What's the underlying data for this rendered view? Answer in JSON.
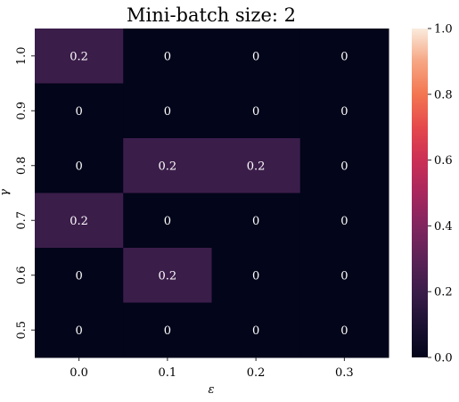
{
  "chart_data": {
    "type": "heatmap",
    "title": "Mini-batch size: 2",
    "xlabel": "ε",
    "ylabel": "γ",
    "x_ticks": [
      "0.0",
      "0.1",
      "0.2",
      "0.3"
    ],
    "y_ticks": [
      "1.0",
      "0.9",
      "0.8",
      "0.7",
      "0.6",
      "0.5"
    ],
    "values": [
      [
        0.2,
        0,
        0,
        0
      ],
      [
        0,
        0,
        0,
        0
      ],
      [
        0,
        0.2,
        0.2,
        0
      ],
      [
        0.2,
        0,
        0,
        0
      ],
      [
        0,
        0.2,
        0,
        0
      ],
      [
        0,
        0,
        0,
        0
      ]
    ],
    "cell_labels": [
      [
        "0.2",
        "0",
        "0",
        "0"
      ],
      [
        "0",
        "0",
        "0",
        "0"
      ],
      [
        "0",
        "0.2",
        "0.2",
        "0"
      ],
      [
        "0.2",
        "0",
        "0",
        "0"
      ],
      [
        "0",
        "0.2",
        "0",
        "0"
      ],
      [
        "0",
        "0",
        "0",
        "0"
      ]
    ],
    "colorbar": {
      "vmin": 0.0,
      "vmax": 1.0,
      "ticks": [
        "0.0",
        "0.2",
        "0.4",
        "0.6",
        "0.8",
        "1.0"
      ],
      "colormap": "rocket"
    }
  }
}
